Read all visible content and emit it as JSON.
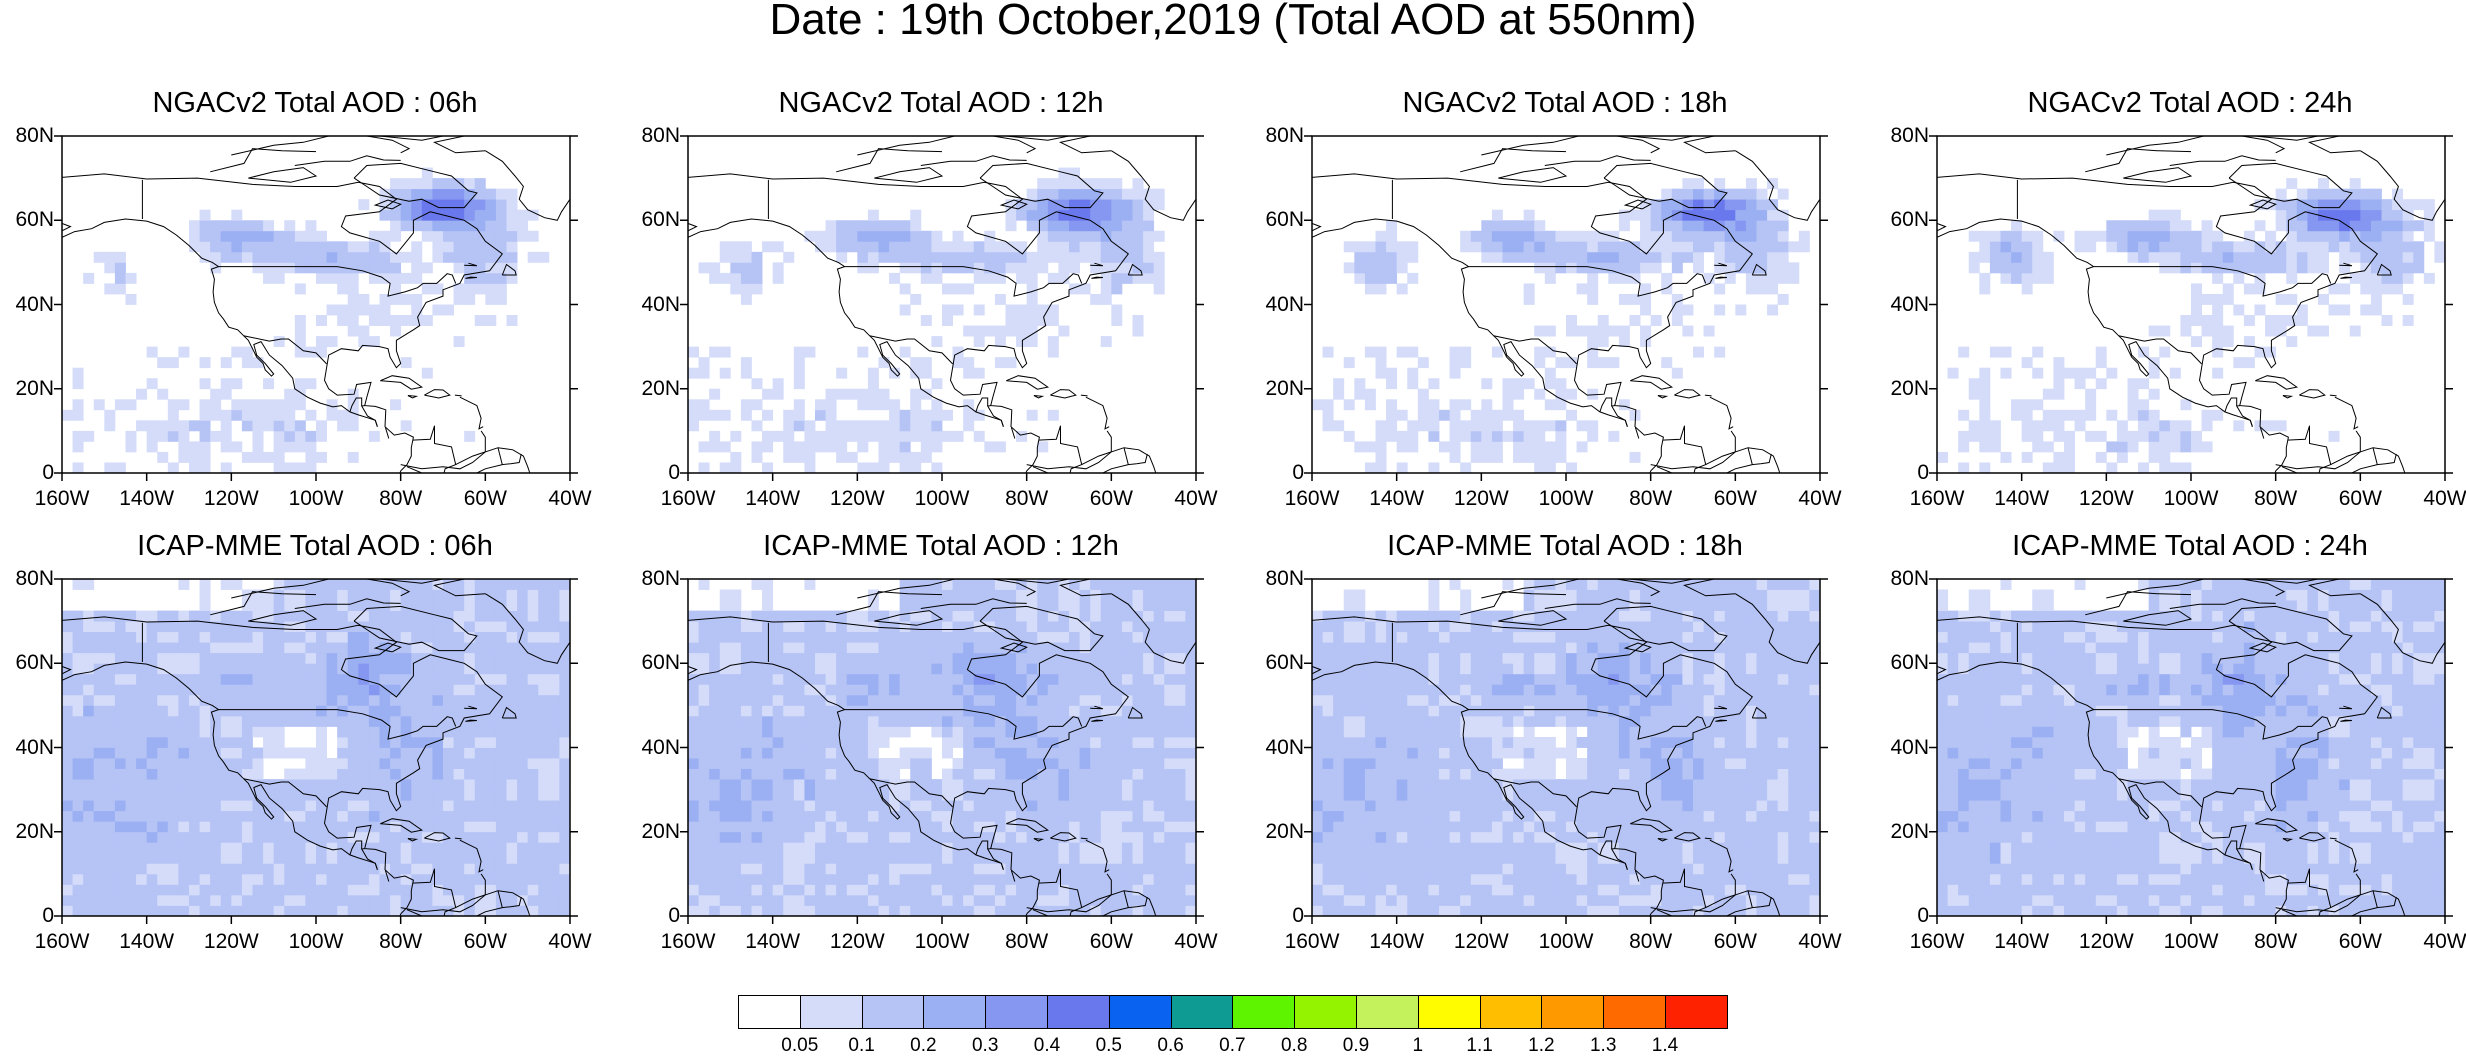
{
  "title": "Date : 19th October,2019 (Total AOD at 550nm)",
  "axes": {
    "y_ticks": [
      "80N",
      "60N",
      "40N",
      "20N",
      "0"
    ],
    "x_ticks": [
      "160W",
      "140W",
      "120W",
      "100W",
      "80W",
      "60W",
      "40W"
    ],
    "lat_range": [
      0,
      80
    ],
    "lon_range": [
      -160,
      -40
    ]
  },
  "panels": [
    {
      "title": "NGACv2 Total AOD : 06h",
      "model": "NGACv2",
      "hour": "06h"
    },
    {
      "title": "NGACv2 Total AOD : 12h",
      "model": "NGACv2",
      "hour": "12h"
    },
    {
      "title": "NGACv2 Total AOD : 18h",
      "model": "NGACv2",
      "hour": "18h"
    },
    {
      "title": "NGACv2 Total AOD : 24h",
      "model": "NGACv2",
      "hour": "24h"
    },
    {
      "title": "ICAP-MME Total AOD : 06h",
      "model": "ICAP-MME",
      "hour": "06h"
    },
    {
      "title": "ICAP-MME Total AOD : 12h",
      "model": "ICAP-MME",
      "hour": "12h"
    },
    {
      "title": "ICAP-MME Total AOD : 18h",
      "model": "ICAP-MME",
      "hour": "18h"
    },
    {
      "title": "ICAP-MME Total AOD : 24h",
      "model": "ICAP-MME",
      "hour": "24h"
    }
  ],
  "colorbar": {
    "labels": [
      "0.05",
      "0.1",
      "0.2",
      "0.3",
      "0.4",
      "0.5",
      "0.6",
      "0.7",
      "0.8",
      "0.9",
      "1",
      "1.1",
      "1.2",
      "1.3",
      "1.4"
    ],
    "colors": [
      "#ffffff",
      "#d4dcfa",
      "#b5c3f5",
      "#9bb0f3",
      "#8597f0",
      "#6a78ee",
      "#0a63f0",
      "#0d9b94",
      "#5ef400",
      "#94f400",
      "#c4f25c",
      "#fffc00",
      "#ffbe00",
      "#ff9900",
      "#ff6a00",
      "#ff2200"
    ]
  }
}
